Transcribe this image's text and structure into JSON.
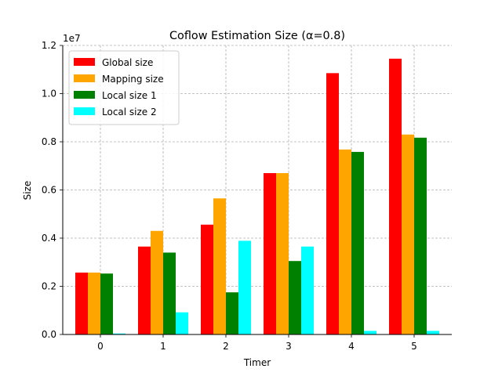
{
  "chart_data": {
    "type": "bar",
    "title": "Coflow Estimation Size (α=0.8)",
    "xlabel": "Timer",
    "ylabel": "Size",
    "y_scale_label": "1e7",
    "y_scale": 10000000,
    "ylim": [
      0,
      12000000
    ],
    "categories": [
      "0",
      "1",
      "2",
      "3",
      "4",
      "5"
    ],
    "y_ticks": [
      0,
      2000000,
      4000000,
      6000000,
      8000000,
      10000000,
      12000000
    ],
    "y_tick_labels": [
      "0.0",
      "0.2",
      "0.4",
      "0.6",
      "0.8",
      "1.0",
      "1.2"
    ],
    "grid": true,
    "legend_position": "top-left",
    "series": [
      {
        "name": "Global size",
        "color": "#ff0000",
        "values": [
          2570000,
          3650000,
          4560000,
          6700000,
          10850000,
          11450000
        ]
      },
      {
        "name": "Mapping size",
        "color": "#ffa500",
        "values": [
          2570000,
          4300000,
          5650000,
          6700000,
          7680000,
          8300000
        ]
      },
      {
        "name": "Local size 1",
        "color": "#008000",
        "values": [
          2530000,
          3400000,
          1750000,
          3050000,
          7580000,
          8170000
        ]
      },
      {
        "name": "Local size 2",
        "color": "#00ffff",
        "values": [
          40000,
          920000,
          3890000,
          3650000,
          150000,
          150000
        ]
      }
    ]
  }
}
